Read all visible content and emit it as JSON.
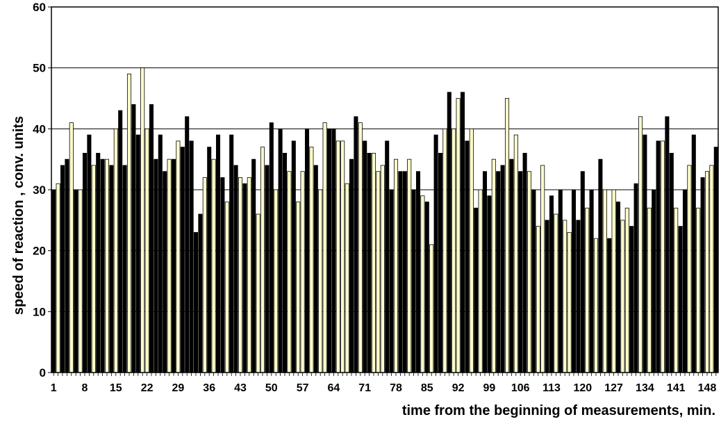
{
  "chart_data": {
    "type": "bar",
    "xlabel": "time from the beginning of measurements, min.",
    "ylabel": "speed of reaction , conv. units",
    "ylim": [
      0,
      60
    ],
    "yticks": [
      0,
      10,
      20,
      30,
      40,
      50,
      60
    ],
    "xtick_labels": [
      "1",
      "8",
      "15",
      "22",
      "29",
      "36",
      "43",
      "50",
      "57",
      "64",
      "71",
      "78",
      "85",
      "92",
      "99",
      "106",
      "113",
      "120",
      "127",
      "134",
      "141",
      "148"
    ],
    "grid": "horizontal",
    "legend": "none",
    "colors": {
      "dark_bar": "#000000",
      "light_bar": "#ffffcc",
      "outline": "#000000",
      "grid": "#000000"
    },
    "x": [
      1,
      2,
      3,
      4,
      5,
      6,
      7,
      8,
      9,
      10,
      11,
      12,
      13,
      14,
      15,
      16,
      17,
      18,
      19,
      20,
      21,
      22,
      23,
      24,
      25,
      26,
      27,
      28,
      29,
      30,
      31,
      32,
      33,
      34,
      35,
      36,
      37,
      38,
      39,
      40,
      41,
      42,
      43,
      44,
      45,
      46,
      47,
      48,
      49,
      50,
      51,
      52,
      53,
      54,
      55,
      56,
      57,
      58,
      59,
      60,
      61,
      62,
      63,
      64,
      65,
      66,
      67,
      68,
      69,
      70,
      71,
      72,
      73,
      74,
      75,
      76,
      77,
      78,
      79,
      80,
      81,
      82,
      83,
      84,
      85,
      86,
      87,
      88,
      89,
      90,
      91,
      92,
      93,
      94,
      95,
      96,
      97,
      98,
      99,
      100,
      101,
      102,
      103,
      104,
      105,
      106,
      107,
      108,
      109,
      110,
      111,
      112,
      113,
      114,
      115,
      116,
      117,
      118,
      119,
      120,
      121,
      122,
      123,
      124,
      125,
      126,
      127,
      128,
      129,
      130,
      131,
      132,
      133,
      134,
      135,
      136,
      137,
      138,
      139,
      140,
      141,
      142,
      143,
      144,
      145,
      146,
      147,
      148,
      149,
      150
    ],
    "values": [
      30,
      31,
      34,
      35,
      41,
      30,
      30,
      36,
      39,
      34,
      36,
      35,
      35,
      34,
      40,
      43,
      34,
      49,
      44,
      39,
      50,
      40,
      44,
      35,
      39,
      33,
      35,
      35,
      38,
      37,
      42,
      38,
      23,
      26,
      32,
      37,
      35,
      39,
      32,
      28,
      39,
      34,
      32,
      31,
      32,
      35,
      26,
      37,
      34,
      41,
      30,
      40,
      36,
      33,
      38,
      28,
      33,
      40,
      37,
      34,
      30,
      41,
      40,
      40,
      38,
      38,
      31,
      35,
      42,
      41,
      38,
      36,
      36,
      33,
      34,
      38,
      30,
      35,
      33,
      33,
      35,
      30,
      33,
      29,
      28,
      21,
      39,
      36,
      40,
      46,
      40,
      45,
      46,
      38,
      40,
      27,
      30,
      33,
      29,
      35,
      33,
      34,
      45,
      35,
      39,
      33,
      36,
      33,
      30,
      24,
      34,
      25,
      29,
      26,
      30,
      25,
      23,
      30,
      25,
      33,
      27,
      30,
      22,
      35,
      30,
      22,
      30,
      28,
      25,
      27,
      24,
      31,
      42,
      39,
      27,
      30,
      38,
      38,
      42,
      36,
      27,
      24,
      30,
      34,
      39,
      27,
      32,
      33,
      34,
      37
    ],
    "bar_shade": [
      "d",
      "l",
      "d",
      "d",
      "l",
      "d",
      "l",
      "d",
      "d",
      "l",
      "d",
      "d",
      "l",
      "d",
      "l",
      "d",
      "d",
      "l",
      "d",
      "d",
      "l",
      "l",
      "d",
      "d",
      "d",
      "d",
      "l",
      "d",
      "l",
      "d",
      "d",
      "d",
      "d",
      "d",
      "l",
      "d",
      "l",
      "d",
      "d",
      "l",
      "d",
      "d",
      "l",
      "d",
      "l",
      "d",
      "l",
      "l",
      "d",
      "d",
      "l",
      "d",
      "d",
      "l",
      "d",
      "l",
      "l",
      "d",
      "l",
      "d",
      "l",
      "l",
      "d",
      "d",
      "l",
      "l",
      "l",
      "d",
      "d",
      "l",
      "d",
      "d",
      "l",
      "l",
      "l",
      "d",
      "d",
      "l",
      "d",
      "d",
      "l",
      "d",
      "d",
      "l",
      "d",
      "l",
      "d",
      "d",
      "l",
      "d",
      "l",
      "l",
      "d",
      "d",
      "l",
      "d",
      "l",
      "d",
      "d",
      "l",
      "d",
      "d",
      "l",
      "d",
      "l",
      "d",
      "d",
      "l",
      "d",
      "l",
      "l",
      "d",
      "d",
      "l",
      "d",
      "l",
      "l",
      "d",
      "d",
      "d",
      "l",
      "d",
      "l",
      "d",
      "l",
      "d",
      "l",
      "d",
      "l",
      "l",
      "d",
      "d",
      "l",
      "d",
      "l",
      "d",
      "d",
      "l",
      "d",
      "d",
      "l",
      "d",
      "d",
      "l",
      "d",
      "l",
      "d",
      "l",
      "l",
      "d"
    ]
  }
}
